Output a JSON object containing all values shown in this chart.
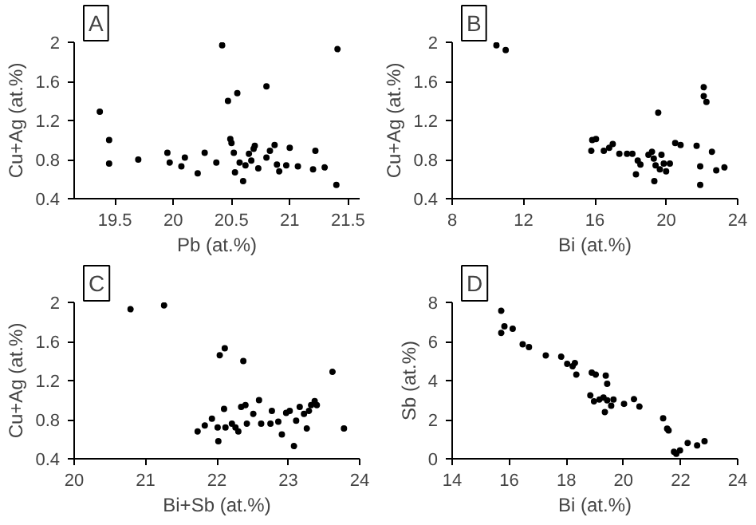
{
  "chart_data": [
    {
      "type": "scatter",
      "title": "A",
      "xlabel": "Pb (at.%)",
      "ylabel": "Cu+Ag (at.%)",
      "marker": "circle",
      "grid": false,
      "xlim": [
        19.15,
        21.6
      ],
      "xticks": [
        19.5,
        20,
        20.5,
        21,
        21.5
      ],
      "ylim": [
        0.4,
        2
      ],
      "yticks": [
        0.4,
        0.8,
        1.2,
        1.6,
        2
      ],
      "series": [
        {
          "color": "#000000",
          "x": [
            19.37,
            19.45,
            19.45,
            19.7,
            19.95,
            19.97,
            20.07,
            20.1,
            20.21,
            20.27,
            20.37,
            20.42,
            20.47,
            20.49,
            20.5,
            20.52,
            20.55,
            20.53,
            20.57,
            20.6,
            20.62,
            20.65,
            20.67,
            20.69,
            20.7,
            20.73,
            20.8,
            20.8,
            20.83,
            20.87,
            20.89,
            20.91,
            20.97,
            21.0,
            21.07,
            21.2,
            21.22,
            21.3,
            21.4,
            21.41
          ],
          "values": [
            1.29,
            1.0,
            0.76,
            0.8,
            0.87,
            0.77,
            0.73,
            0.82,
            0.66,
            0.87,
            0.77,
            1.97,
            1.4,
            1.01,
            0.97,
            0.87,
            1.48,
            0.67,
            0.77,
            0.58,
            0.74,
            0.86,
            0.79,
            0.91,
            0.94,
            0.71,
            1.55,
            0.82,
            0.89,
            0.95,
            0.75,
            0.68,
            0.74,
            0.92,
            0.73,
            0.7,
            0.89,
            0.72,
            0.54,
            1.93
          ]
        }
      ]
    },
    {
      "type": "scatter",
      "title": "B",
      "xlabel": "Bi (at.%)",
      "ylabel": "Cu+Ag (at.%)",
      "marker": "circle",
      "grid": false,
      "xlim": [
        8,
        24
      ],
      "xticks": [
        8,
        12,
        16,
        20,
        24
      ],
      "ylim": [
        0.4,
        2
      ],
      "yticks": [
        0.4,
        0.8,
        1.2,
        1.6,
        2
      ],
      "series": [
        {
          "color": "#000000",
          "x": [
            10.48,
            11.0,
            15.85,
            16.06,
            15.8,
            16.5,
            16.8,
            17.0,
            17.37,
            17.8,
            18.1,
            18.4,
            18.55,
            18.3,
            19.0,
            19.2,
            19.3,
            19.4,
            19.33,
            19.55,
            19.64,
            19.73,
            19.86,
            19.99,
            20.2,
            20.5,
            20.8,
            21.7,
            21.9,
            21.9,
            22.1,
            22.1,
            22.25,
            22.56,
            22.8,
            23.26
          ],
          "values": [
            1.97,
            1.92,
            1.0,
            1.01,
            0.89,
            0.89,
            0.92,
            0.96,
            0.86,
            0.86,
            0.86,
            0.79,
            0.75,
            0.65,
            0.85,
            0.88,
            0.81,
            0.74,
            0.58,
            1.28,
            0.7,
            0.85,
            0.76,
            0.68,
            0.76,
            0.97,
            0.95,
            0.94,
            0.73,
            0.54,
            1.54,
            1.45,
            1.39,
            0.88,
            0.69,
            0.72
          ]
        }
      ]
    },
    {
      "type": "scatter",
      "title": "C",
      "xlabel": "Bi+Sb (at.%)",
      "ylabel": "Cu+Ag (at.%)",
      "marker": "circle",
      "grid": false,
      "xlim": [
        20,
        24
      ],
      "xticks": [
        20,
        21,
        22,
        23,
        24
      ],
      "ylim": [
        0.4,
        2
      ],
      "yticks": [
        0.4,
        0.8,
        1.2,
        1.6,
        2
      ],
      "series": [
        {
          "color": "#000000",
          "x": [
            20.79,
            21.26,
            22.04,
            22.11,
            22.37,
            23.62,
            21.73,
            21.83,
            21.93,
            22.01,
            22.02,
            22.1,
            22.12,
            22.21,
            22.26,
            22.3,
            22.34,
            22.4,
            22.42,
            22.51,
            22.59,
            22.62,
            22.75,
            22.77,
            22.86,
            22.91,
            22.97,
            23.02,
            23.08,
            23.11,
            23.16,
            23.22,
            23.26,
            23.29,
            23.32,
            23.37,
            23.4,
            23.78
          ],
          "values": [
            1.93,
            1.97,
            1.46,
            1.53,
            1.4,
            1.29,
            0.68,
            0.74,
            0.81,
            0.72,
            0.58,
            0.91,
            0.72,
            0.76,
            0.72,
            0.68,
            0.93,
            0.95,
            0.76,
            0.86,
            1.0,
            0.76,
            0.76,
            0.89,
            0.78,
            0.65,
            0.87,
            0.89,
            0.53,
            0.79,
            0.93,
            0.86,
            0.71,
            0.89,
            0.95,
            0.99,
            0.95,
            0.71
          ]
        }
      ]
    },
    {
      "type": "scatter",
      "title": "D",
      "xlabel": "Bi (at.%)",
      "ylabel": "Sb (at.%)",
      "marker": "circle",
      "grid": false,
      "xlim": [
        14,
        24
      ],
      "xticks": [
        14,
        16,
        18,
        20,
        22,
        24
      ],
      "ylim": [
        0,
        8
      ],
      "yticks": [
        0,
        2,
        4,
        6,
        8
      ],
      "series": [
        {
          "color": "#000000",
          "x": [
            15.72,
            15.72,
            15.83,
            16.12,
            16.47,
            16.69,
            17.28,
            17.82,
            18.03,
            18.22,
            18.3,
            18.35,
            18.89,
            19.03,
            19.38,
            19.43,
            18.84,
            18.97,
            19.16,
            19.3,
            19.35,
            19.43,
            19.57,
            19.65,
            20.02,
            20.37,
            20.56,
            21.39,
            21.53,
            21.58,
            21.77,
            21.85,
            21.98,
            22.25,
            22.58,
            22.84
          ],
          "values": [
            7.57,
            6.44,
            6.78,
            6.65,
            5.86,
            5.71,
            5.29,
            5.22,
            4.86,
            4.73,
            4.9,
            4.31,
            4.41,
            4.31,
            4.26,
            3.84,
            3.24,
            2.94,
            3.03,
            3.13,
            2.39,
            2.99,
            2.71,
            3.03,
            2.81,
            3.05,
            2.67,
            2.07,
            1.54,
            1.45,
            0.36,
            0.26,
            0.43,
            0.81,
            0.68,
            0.9
          ]
        }
      ]
    }
  ]
}
